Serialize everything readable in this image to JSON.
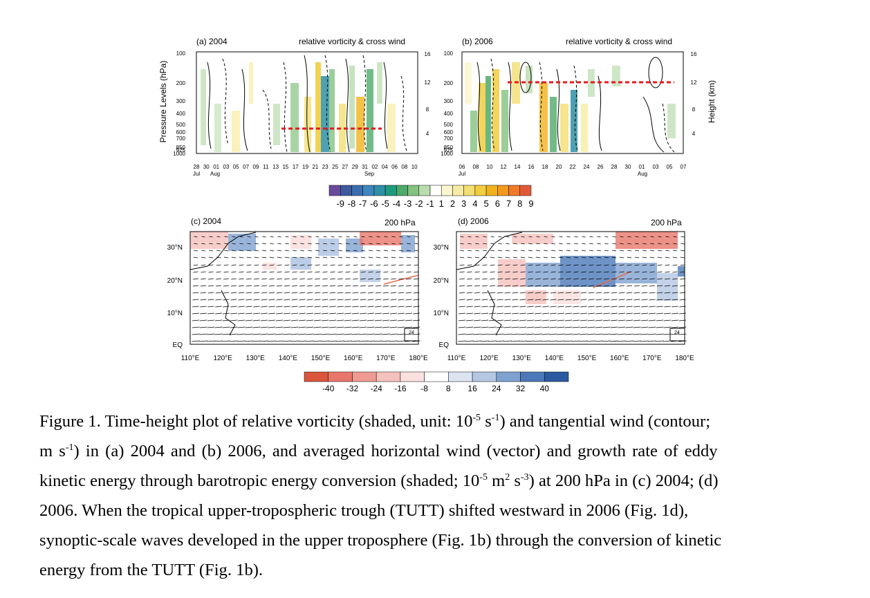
{
  "panels": {
    "a": {
      "label": "(a) 2004",
      "right": "relative vorticity & cross wind"
    },
    "b": {
      "label": "(b) 2006",
      "right": "relative vorticity & cross wind"
    },
    "c": {
      "label": "(c) 2004",
      "right": "200 hPa"
    },
    "d": {
      "label": "(d) 2006",
      "right": "200 hPa"
    }
  },
  "axes_top": {
    "ylabel_left": "Pressure Levels (hPa)",
    "ylabel_right": "Height (km)",
    "pressure_ticks": [
      "100",
      "200",
      "300",
      "400",
      "500",
      "600",
      "700",
      "850",
      "925",
      "1000"
    ],
    "height_ticks": [
      "16",
      "12",
      "8",
      "4"
    ],
    "a_dates": [
      "28",
      "30",
      "01",
      "03",
      "05",
      "07",
      "09",
      "11",
      "13",
      "15",
      "17",
      "19",
      "21",
      "23",
      "25",
      "27",
      "29",
      "31",
      "02",
      "04",
      "06",
      "08",
      "10"
    ],
    "a_months": [
      "Jul",
      "Aug",
      "Sep"
    ],
    "b_dates": [
      "06",
      "08",
      "10",
      "12",
      "14",
      "16",
      "18",
      "20",
      "22",
      "24",
      "26",
      "28",
      "30",
      "01",
      "03",
      "05",
      "07"
    ],
    "b_months": [
      "Jul",
      "Aug"
    ]
  },
  "colorbar_top": {
    "labels": [
      "-9",
      "-8",
      "-7",
      "-6",
      "-5",
      "-4",
      "-3",
      "-2",
      "-1",
      "1",
      "2",
      "3",
      "4",
      "5",
      "6",
      "7",
      "8",
      "9"
    ],
    "colors": [
      "#6a4a9c",
      "#3e5a9e",
      "#3b6eae",
      "#3e86bf",
      "#2f8fa6",
      "#1f9b7e",
      "#4daa6a",
      "#83c27f",
      "#b9dcae",
      "#ffffff",
      "#fbf6cf",
      "#f7eca3",
      "#f3df72",
      "#f1cd3f",
      "#f0b31b",
      "#f29a1e",
      "#ef7a2a",
      "#e35a3a"
    ]
  },
  "axes_bottom": {
    "lat_ticks": [
      "30°N",
      "20°N",
      "10°N",
      "EQ"
    ],
    "lon_ticks": [
      "110°E",
      "120°E",
      "130°E",
      "140°E",
      "150°E",
      "160°E",
      "170°E",
      "180°E"
    ],
    "ref_vector": "24"
  },
  "colorbar_bottom": {
    "labels": [
      "-40",
      "-32",
      "-24",
      "-16",
      "-8",
      "8",
      "16",
      "24",
      "32",
      "40"
    ],
    "colors": [
      "#d9553b",
      "#e8776a",
      "#ef9a92",
      "#f5c1bd",
      "#fae0de",
      "#ffffff",
      "#dce4f1",
      "#b4c7e3",
      "#7fa1cf",
      "#4a78b8",
      "#2a5aa0"
    ]
  },
  "caption": {
    "l1": "Figure 1. Time-height plot of relative vorticity (shaded, unit: 10",
    "l1_sup1": "-5",
    "l1_mid": " s",
    "l1_sup2": "-1",
    "l1_end": ") and tangential wind (contour;",
    "l2a": "m s",
    "l2_sup": "-1",
    "l2_end": ") in (a) 2004 and (b) 2006, and averaged horizontal wind (vector) and growth rate of eddy",
    "l3a": "kinetic energy through barotropic energy conversion (shaded; 10",
    "l3_sup1": "-5",
    "l3_mid": " m",
    "l3_sup2": "2",
    "l3_mid2": " s",
    "l3_sup3": "-3",
    "l3_end": ") at 200 hPa in (c) 2004; (d)",
    "l4": "2006. When the tropical upper-tropospheric trough (TUTT) shifted westward in 2006 (Fig. 1d),",
    "l5": "synoptic-scale waves developed in the upper troposphere (Fig. 1b) through the conversion of kinetic",
    "l6": "energy from the TUTT (Fig. 1b)."
  }
}
